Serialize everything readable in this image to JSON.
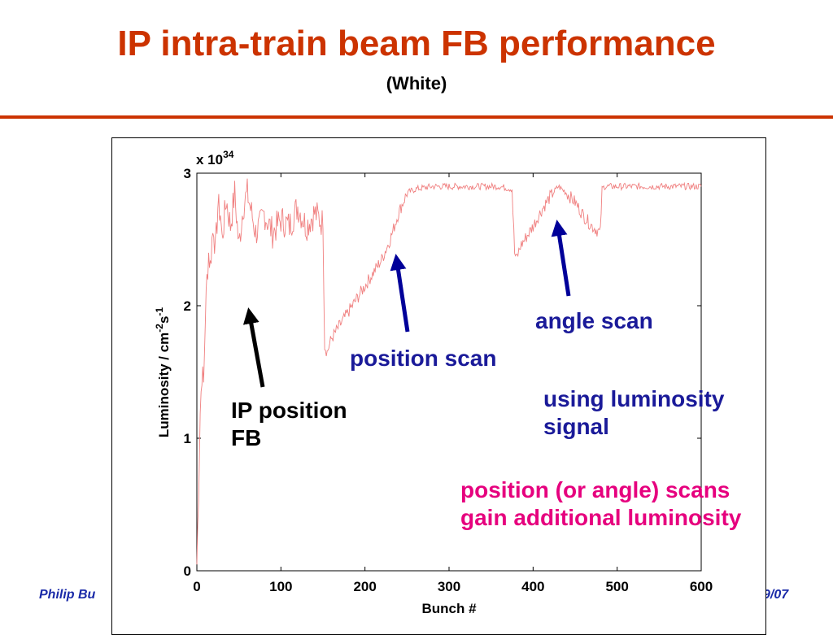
{
  "slide": {
    "title": "IP intra-train beam FB performance",
    "subtitle": "(White)",
    "footer_left": "Philip Bu",
    "footer_right": "9/07"
  },
  "colors": {
    "title": "#cc3300",
    "rule": "#cc3300",
    "trace": "#f08080",
    "arrow_black": "#000000",
    "arrow_blue": "#000099",
    "annotation_blue": "#1a1a99",
    "annotation_pink": "#e6007e"
  },
  "chart_data": {
    "type": "line",
    "title": "",
    "xlabel": "Bunch #",
    "ylabel": "Luminosity / cm-2s-1",
    "ylabel_parts": [
      "Luminosity / cm",
      "-2",
      "s",
      "-1"
    ],
    "y_multiplier": "x 10",
    "y_multiplier_exp": "34",
    "xlim": [
      0,
      600
    ],
    "ylim": [
      0,
      3
    ],
    "xticks": [
      0,
      100,
      200,
      300,
      400,
      500,
      600
    ],
    "yticks": [
      0,
      1,
      2,
      3
    ],
    "grid": false,
    "series": [
      {
        "color": "#f08080",
        "x": [
          0,
          2,
          4,
          6,
          8,
          10,
          12,
          14,
          16,
          18,
          20,
          22,
          25,
          28,
          30,
          35,
          40,
          45,
          50,
          55,
          60,
          65,
          70,
          75,
          80,
          90,
          100,
          110,
          120,
          130,
          140,
          150,
          152,
          155,
          160,
          170,
          180,
          190,
          200,
          210,
          220,
          230,
          240,
          250,
          260,
          280,
          300,
          320,
          340,
          360,
          375,
          378,
          380,
          385,
          390,
          400,
          410,
          420,
          430,
          440,
          450,
          460,
          470,
          480,
          482,
          485,
          490,
          500,
          520,
          540,
          560,
          580,
          600
        ],
        "y": [
          0.05,
          0.6,
          1.2,
          1.5,
          1.4,
          1.9,
          2.2,
          2.4,
          2.3,
          2.5,
          2.6,
          2.4,
          2.75,
          2.7,
          2.5,
          2.8,
          2.6,
          2.85,
          2.45,
          2.75,
          2.85,
          2.7,
          2.55,
          2.6,
          2.7,
          2.55,
          2.65,
          2.6,
          2.75,
          2.6,
          2.7,
          2.62,
          1.7,
          1.65,
          1.75,
          1.85,
          1.95,
          2.05,
          2.15,
          2.25,
          2.35,
          2.5,
          2.7,
          2.85,
          2.88,
          2.9,
          2.9,
          2.9,
          2.9,
          2.9,
          2.88,
          2.4,
          2.35,
          2.45,
          2.5,
          2.6,
          2.72,
          2.82,
          2.9,
          2.85,
          2.78,
          2.68,
          2.6,
          2.55,
          2.88,
          2.9,
          2.9,
          2.9,
          2.9,
          2.9,
          2.9,
          2.9,
          2.9
        ]
      }
    ]
  },
  "annotations": {
    "ip_fb": {
      "line1": "IP position",
      "line2": "FB"
    },
    "position_scan": "position scan",
    "angle_scan": "angle scan",
    "luminosity_signal": {
      "line1": "using luminosity",
      "line2": "signal"
    },
    "gain": {
      "line1": "position (or angle) scans",
      "line2": "gain additional luminosity"
    }
  }
}
